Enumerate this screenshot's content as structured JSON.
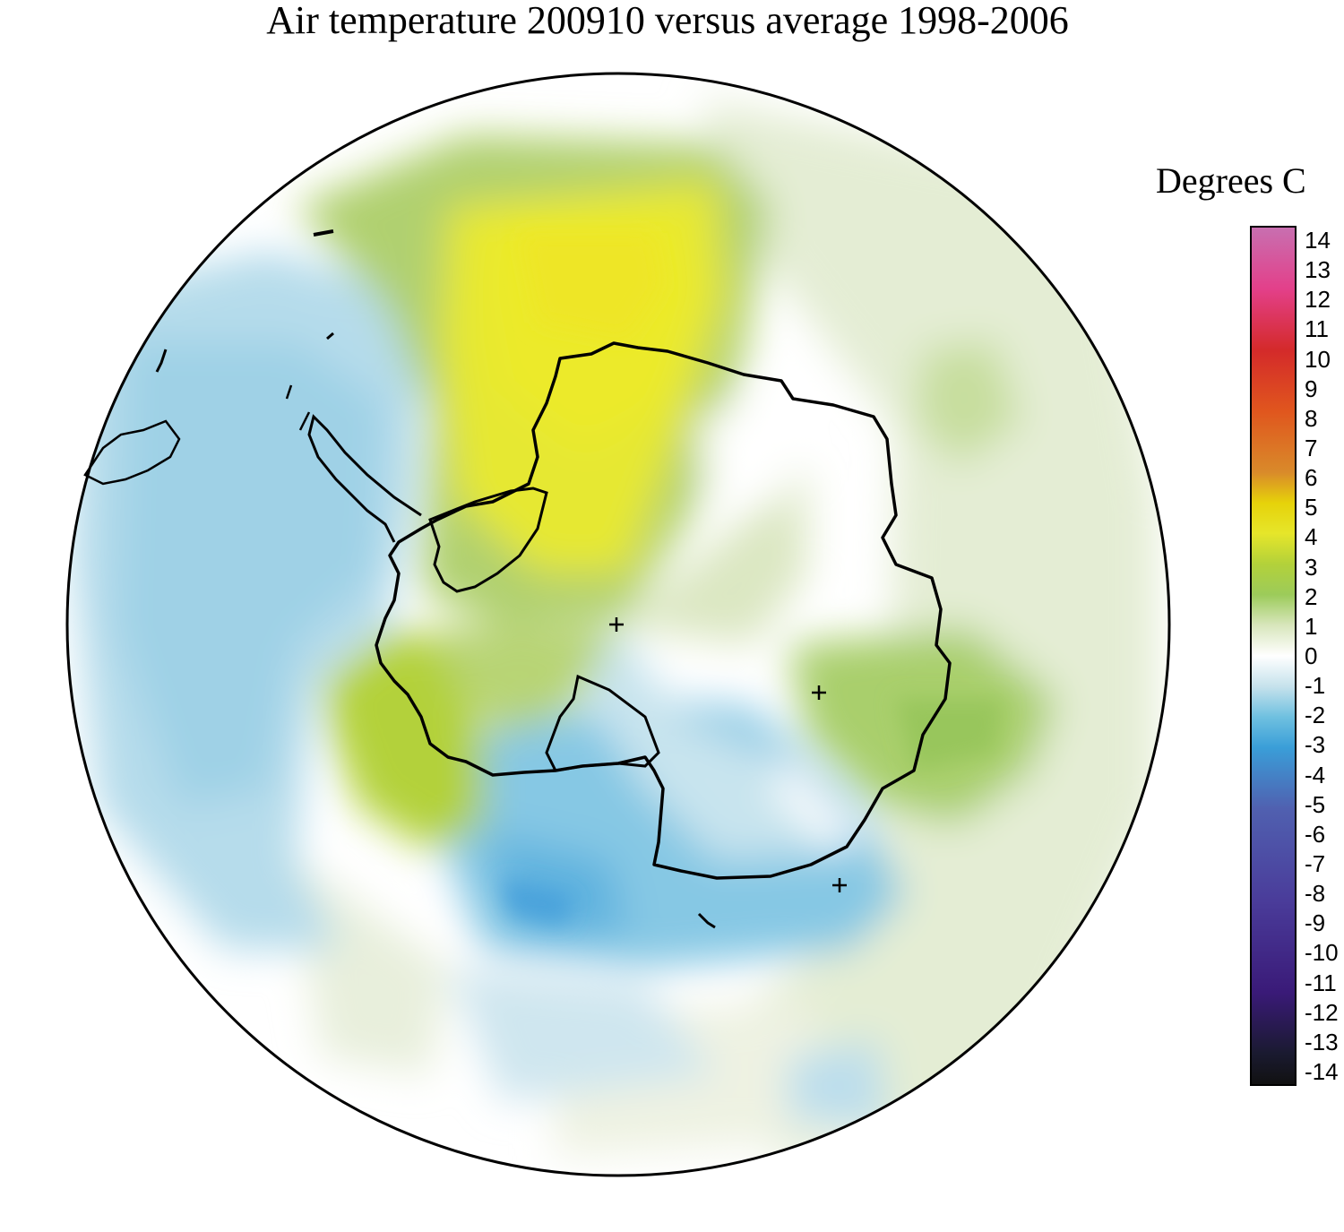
{
  "title": "Air temperature 200910 versus average 1998-2006",
  "colorbar": {
    "label": "Degrees C",
    "ticks": [
      "14",
      "13",
      "12",
      "11",
      "10",
      "9",
      "8",
      "7",
      "6",
      "5",
      "4",
      "3",
      "2",
      "1",
      "0",
      "-1",
      "-2",
      "-3",
      "-4",
      "-5",
      "-6",
      "-7",
      "-8",
      "-9",
      "-10",
      "-11",
      "-12",
      "-13",
      "-14"
    ],
    "range": [
      -14,
      14
    ],
    "colors": [
      {
        "value": 14,
        "color": "#c86fb0"
      },
      {
        "value": 12,
        "color": "#e3408a"
      },
      {
        "value": 10,
        "color": "#d42a2a"
      },
      {
        "value": 8,
        "color": "#e0561e"
      },
      {
        "value": 6,
        "color": "#d98a2a"
      },
      {
        "value": 5,
        "color": "#e6d20a"
      },
      {
        "value": 4,
        "color": "#e6e62a"
      },
      {
        "value": 3,
        "color": "#b3d13a"
      },
      {
        "value": 2,
        "color": "#9ccb5a"
      },
      {
        "value": 1,
        "color": "#d8e6bc"
      },
      {
        "value": 0,
        "color": "#ffffff"
      },
      {
        "value": -1,
        "color": "#c6e2ec"
      },
      {
        "value": -2,
        "color": "#6fc0e0"
      },
      {
        "value": -3,
        "color": "#3a9ed8"
      },
      {
        "value": -5,
        "color": "#5060b0"
      },
      {
        "value": -8,
        "color": "#4a3c9a"
      },
      {
        "value": -11,
        "color": "#3a1a78"
      },
      {
        "value": -13,
        "color": "#1a1a30"
      },
      {
        "value": -14,
        "color": "#111111"
      }
    ]
  },
  "map": {
    "projection": "south polar stereographic",
    "region": "Antarctica and Southern Ocean",
    "field_colors": {
      "ocean_cold": "#a8d8ea",
      "cold": "#7cc3e2",
      "coldest": "#5aa8dc",
      "neutral": "#ffffff",
      "slight_warm": "#e4edd4",
      "warm": "#a8cc6a",
      "warmer": "#bfd83a",
      "warmest": "#e9e92e",
      "coast": "#000000"
    },
    "stations": [
      "pole-marker",
      "east-antarctica-marker",
      "ross-sea-marker"
    ]
  }
}
